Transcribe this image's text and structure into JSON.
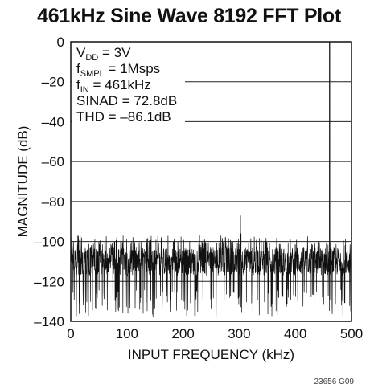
{
  "figure_id": "23656 G09",
  "chart_data": {
    "type": "line",
    "title": "461kHz Sine Wave 8192 FFT Plot",
    "xlabel": "INPUT FREQUENCY (kHz)",
    "ylabel": "MAGNITUDE (dB)",
    "xlim": [
      0,
      500
    ],
    "ylim": [
      -140,
      0
    ],
    "x_ticks": [
      "0",
      "100",
      "200",
      "300",
      "400",
      "500"
    ],
    "y_ticks": [
      "0",
      "–20",
      "–40",
      "–60",
      "–80",
      "–100",
      "–120",
      "–140"
    ],
    "grid": "horizontal",
    "annotations": [
      {
        "main": "V",
        "sub": "DD",
        "rest": " = 3V"
      },
      {
        "main": "f",
        "sub": "SMPL",
        "rest": " = 1Msps"
      },
      {
        "main": "f",
        "sub": "IN",
        "rest": " = 461kHz"
      },
      {
        "main": "SINAD = 72.8dB",
        "sub": "",
        "rest": ""
      },
      {
        "main": "THD = –86.1dB",
        "sub": "",
        "rest": ""
      }
    ],
    "series": [
      {
        "noise_floor_db": -110,
        "noise_min_db": -138,
        "noise_max_db": -97,
        "peaks": [
          {
            "x": 461,
            "y": 0
          },
          {
            "x": 302,
            "y": -87
          },
          {
            "x": 303,
            "y": -96
          },
          {
            "x": 229,
            "y": -97
          },
          {
            "x": 78,
            "y": -100
          },
          {
            "x": 183,
            "y": -100
          },
          {
            "x": 349,
            "y": -101
          }
        ]
      }
    ],
    "color": "#111111"
  }
}
